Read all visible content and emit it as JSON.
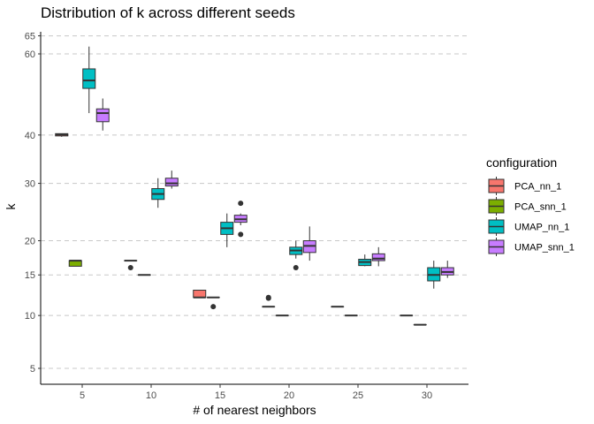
{
  "chart_data": {
    "type": "box",
    "title": "Distribution of k across different seeds",
    "xlabel": "# of nearest neighbors",
    "ylabel": "k",
    "y_scale": "sqrt",
    "ylim": [
      4,
      70
    ],
    "y_ticks": [
      5,
      10,
      15,
      20,
      30,
      40,
      60,
      65
    ],
    "categories": [
      "5",
      "10",
      "15",
      "20",
      "25",
      "30"
    ],
    "grid": "horizontal dashed at y ticks",
    "legend": {
      "title": "configuration",
      "position": "right",
      "entries": [
        {
          "name": "PCA_nn_1",
          "color": "#F8766D"
        },
        {
          "name": "PCA_snn_1",
          "color": "#7CAE00"
        },
        {
          "name": "UMAP_nn_1",
          "color": "#00BFC4"
        },
        {
          "name": "UMAP_snn_1",
          "color": "#C77CFF"
        }
      ]
    },
    "series": [
      {
        "name": "PCA_nn_1",
        "color": "#F8766D",
        "boxes": [
          {
            "x": "5",
            "min": 39.6,
            "q1": 39.8,
            "median": 40.1,
            "q3": 40.3,
            "max": 40.3,
            "outliers": []
          },
          {
            "x": "10",
            "min": 17,
            "q1": 17,
            "median": 17,
            "q3": 17,
            "max": 17,
            "outliers": [
              16
            ]
          },
          {
            "x": "15",
            "min": 12.1,
            "q1": 12.1,
            "median": 12.1,
            "q3": 13,
            "max": 13,
            "outliers": []
          },
          {
            "x": "20",
            "min": 11,
            "q1": 11,
            "median": 11,
            "q3": 11,
            "max": 11,
            "outliers": [
              12,
              12.1
            ]
          },
          {
            "x": "25",
            "min": 11,
            "q1": 11,
            "median": 11,
            "q3": 11,
            "max": 11,
            "outliers": []
          },
          {
            "x": "30",
            "min": 10,
            "q1": 10,
            "median": 10,
            "q3": 10,
            "max": 10,
            "outliers": []
          }
        ]
      },
      {
        "name": "PCA_snn_1",
        "color": "#7CAE00",
        "boxes": [
          {
            "x": "5",
            "min": 16.2,
            "q1": 16.2,
            "median": 17,
            "q3": 17,
            "max": 17,
            "outliers": []
          },
          {
            "x": "10",
            "min": 15,
            "q1": 15,
            "median": 15,
            "q3": 15,
            "max": 15,
            "outliers": []
          },
          {
            "x": "15",
            "min": 12.1,
            "q1": 12.1,
            "median": 12.1,
            "q3": 12.1,
            "max": 12.1,
            "outliers": [
              11
            ]
          },
          {
            "x": "20",
            "min": 10,
            "q1": 10,
            "median": 10,
            "q3": 10,
            "max": 10,
            "outliers": []
          },
          {
            "x": "25",
            "min": 10,
            "q1": 10,
            "median": 10,
            "q3": 10,
            "max": 10,
            "outliers": []
          },
          {
            "x": "30",
            "min": 9,
            "q1": 9,
            "median": 9,
            "q3": 9,
            "max": 9,
            "outliers": []
          }
        ]
      },
      {
        "name": "UMAP_nn_1",
        "color": "#00BFC4",
        "boxes": [
          {
            "x": "5",
            "min": 45,
            "q1": 51,
            "median": 53,
            "q3": 56,
            "max": 62,
            "outliers": []
          },
          {
            "x": "10",
            "min": 25.5,
            "q1": 27,
            "median": 28,
            "q3": 29,
            "max": 31,
            "outliers": []
          },
          {
            "x": "15",
            "min": 19,
            "q1": 21,
            "median": 22,
            "q3": 23,
            "max": 24.5,
            "outliers": []
          },
          {
            "x": "20",
            "min": 17.3,
            "q1": 17.9,
            "median": 18.5,
            "q3": 19,
            "max": 20,
            "outliers": [
              16
            ]
          },
          {
            "x": "25",
            "min": 16.2,
            "q1": 16.3,
            "median": 16.8,
            "q3": 17.2,
            "max": 17.9,
            "outliers": []
          },
          {
            "x": "30",
            "min": 13.2,
            "q1": 14.2,
            "median": 15,
            "q3": 16,
            "max": 17,
            "outliers": []
          }
        ]
      },
      {
        "name": "UMAP_snn_1",
        "color": "#C77CFF",
        "boxes": [
          {
            "x": "5",
            "min": 41,
            "q1": 43,
            "median": 45,
            "q3": 46,
            "max": 48.5,
            "outliers": []
          },
          {
            "x": "10",
            "min": 29,
            "q1": 29.5,
            "median": 30,
            "q3": 31,
            "max": 32.5,
            "outliers": []
          },
          {
            "x": "15",
            "min": 22.5,
            "q1": 23,
            "median": 23.5,
            "q3": 24.2,
            "max": 24.5,
            "outliers": [
              21,
              26.3
            ]
          },
          {
            "x": "20",
            "min": 17,
            "q1": 18.2,
            "median": 19.2,
            "q3": 20,
            "max": 22.3,
            "outliers": []
          },
          {
            "x": "25",
            "min": 16.2,
            "q1": 17,
            "median": 17.3,
            "q3": 18,
            "max": 19,
            "outliers": []
          },
          {
            "x": "30",
            "min": 14.6,
            "q1": 15,
            "median": 15.4,
            "q3": 16,
            "max": 17,
            "outliers": []
          }
        ]
      }
    ]
  }
}
